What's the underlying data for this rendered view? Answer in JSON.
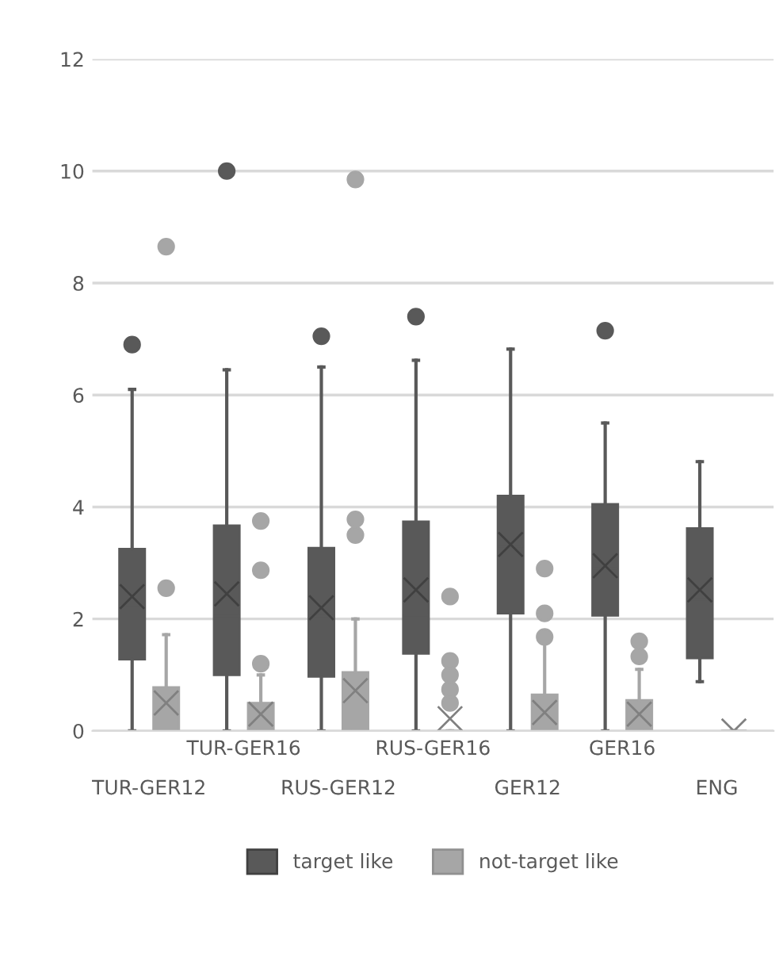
{
  "chart_data": {
    "type": "box",
    "categories": [
      "TUR-GER12",
      "TUR-GER16",
      "RUS-GER12",
      "RUS-GER16",
      "GER12",
      "GER16",
      "ENG"
    ],
    "series": [
      {
        "name": "target like",
        "color": "#595959",
        "boxes": [
          {
            "low": 0,
            "q1": 1.28,
            "median": 2.2,
            "q3": 3.25,
            "high": 6.1,
            "mean": 2.4,
            "outliers": [
              6.9
            ]
          },
          {
            "low": 0,
            "q1": 1.0,
            "median": 2.05,
            "q3": 3.67,
            "high": 6.45,
            "mean": 2.45,
            "outliers": [
              10
            ]
          },
          {
            "low": 0,
            "q1": 0.97,
            "median": 2.05,
            "q3": 3.27,
            "high": 6.5,
            "mean": 2.2,
            "outliers": [
              7.05
            ]
          },
          {
            "low": 0,
            "q1": 1.38,
            "median": 2.06,
            "q3": 3.74,
            "high": 6.62,
            "mean": 2.52,
            "outliers": [
              7.4
            ]
          },
          {
            "low": 0,
            "q1": 2.1,
            "median": 3.3,
            "q3": 4.2,
            "high": 6.82,
            "mean": 3.33
          },
          {
            "low": 0,
            "q1": 2.06,
            "median": 2.9,
            "q3": 4.05,
            "high": 5.5,
            "mean": 2.95,
            "outliers": [
              7.15
            ]
          },
          {
            "low": 0.88,
            "q1": 1.3,
            "median": 2.35,
            "q3": 3.62,
            "high": 4.81,
            "mean": 2.52
          }
        ]
      },
      {
        "name": "not-target like",
        "color": "#a6a6a6",
        "boxes": [
          {
            "low": 0,
            "q1": 0,
            "median": 0,
            "q3": 0.78,
            "high": 1.72,
            "mean": 0.5,
            "outliers": [
              2.55,
              8.65
            ]
          },
          {
            "low": 0,
            "q1": 0,
            "median": 0,
            "q3": 0.5,
            "high": 1.0,
            "mean": 0.3,
            "outliers": [
              1.2,
              2.87,
              3.75
            ]
          },
          {
            "low": 0,
            "q1": 0,
            "median": 0,
            "q3": 1.05,
            "high": 2.0,
            "mean": 0.72,
            "outliers": [
              3.5,
              3.78,
              9.85
            ]
          },
          {
            "low": 0,
            "q1": 0,
            "median": 0,
            "q3": 0,
            "high": 0,
            "mean": 0.22,
            "outliers": [
              0.5,
              0.74,
              1.0,
              1.25,
              2.4
            ]
          },
          {
            "low": 0,
            "q1": 0,
            "median": 0,
            "q3": 0.65,
            "high": 1.6,
            "mean": 0.33,
            "outliers": [
              1.68,
              2.1,
              2.9
            ]
          },
          {
            "low": 0,
            "q1": 0,
            "median": 0,
            "q3": 0.55,
            "high": 1.1,
            "mean": 0.3,
            "outliers": [
              1.33,
              1.6
            ]
          },
          {
            "low": 0,
            "q1": 0,
            "median": 0,
            "q3": 0,
            "high": 0,
            "mean": 0
          }
        ]
      }
    ],
    "ylim": [
      0,
      12
    ],
    "yticks": [
      0,
      2,
      4,
      6,
      8,
      10,
      12
    ],
    "grid": "y",
    "legend": "bottom"
  }
}
